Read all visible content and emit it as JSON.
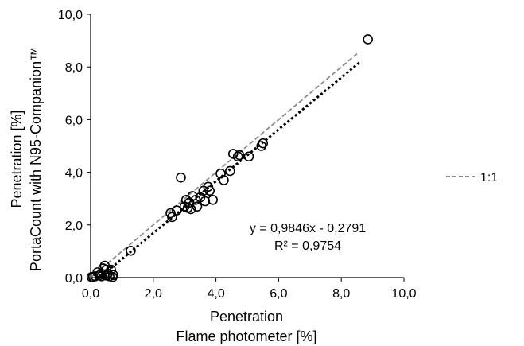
{
  "chart_data": {
    "type": "scatter",
    "x_axis": {
      "title_line1": "Penetration",
      "title_line2": "Flame photometer [%]",
      "range": [
        0,
        10
      ],
      "ticks": [
        0,
        2,
        4,
        6,
        8,
        10
      ],
      "tick_labels": [
        "0,0",
        "2,0",
        "4,0",
        "6,0",
        "8,0",
        "10,0"
      ]
    },
    "y_axis": {
      "title_line1": "Penetration [%]",
      "title_line2": "PortaCount with N95-Companion™",
      "range": [
        0,
        10
      ],
      "ticks": [
        0,
        2,
        4,
        6,
        8,
        10
      ],
      "tick_labels": [
        "0,0",
        "2,0",
        "4,0",
        "6,0",
        "8,0",
        "10,0"
      ]
    },
    "grid": false,
    "series": [
      {
        "marker": "open-circle",
        "points": [
          [
            0.03,
            0.02
          ],
          [
            0.08,
            0.03
          ],
          [
            0.15,
            0.05
          ],
          [
            0.22,
            0.2
          ],
          [
            0.3,
            0.1
          ],
          [
            0.35,
            0.05
          ],
          [
            0.4,
            0.35
          ],
          [
            0.45,
            0.45
          ],
          [
            0.5,
            0.3
          ],
          [
            0.5,
            0.08
          ],
          [
            0.55,
            0.15
          ],
          [
            0.6,
            0.05
          ],
          [
            0.65,
            0.3
          ],
          [
            0.7,
            0.02
          ],
          [
            0.72,
            0.1
          ],
          [
            1.28,
            1.02
          ],
          [
            2.55,
            2.45
          ],
          [
            2.6,
            2.3
          ],
          [
            2.75,
            2.55
          ],
          [
            2.88,
            3.8
          ],
          [
            3.0,
            2.7
          ],
          [
            3.05,
            2.95
          ],
          [
            3.1,
            2.65
          ],
          [
            3.15,
            2.85
          ],
          [
            3.2,
            2.6
          ],
          [
            3.25,
            3.1
          ],
          [
            3.35,
            2.95
          ],
          [
            3.4,
            2.7
          ],
          [
            3.5,
            3.05
          ],
          [
            3.6,
            3.3
          ],
          [
            3.65,
            2.9
          ],
          [
            3.75,
            3.45
          ],
          [
            3.8,
            3.3
          ],
          [
            3.9,
            2.95
          ],
          [
            4.15,
            3.95
          ],
          [
            4.25,
            3.7
          ],
          [
            4.45,
            4.05
          ],
          [
            4.55,
            4.7
          ],
          [
            4.7,
            4.6
          ],
          [
            4.75,
            4.65
          ],
          [
            5.05,
            4.6
          ],
          [
            5.45,
            5.0
          ],
          [
            5.5,
            5.1
          ],
          [
            8.85,
            9.05
          ]
        ]
      }
    ],
    "regression": {
      "slope": 0.9846,
      "intercept": -0.2791,
      "x_range": [
        0.3,
        8.6
      ]
    },
    "identity_line": {
      "x_range": [
        0.0,
        8.5
      ]
    },
    "annotation": {
      "equation": "y = 0,9846x - 0,2791",
      "r_squared": "R² = 0,9754"
    },
    "legend": {
      "position": "right",
      "entries": [
        {
          "label": "1:1",
          "style": "dashed-gray"
        }
      ]
    },
    "colors": {
      "points": "#000000",
      "regression": "#000000",
      "identity": "#8c8c8c"
    }
  }
}
